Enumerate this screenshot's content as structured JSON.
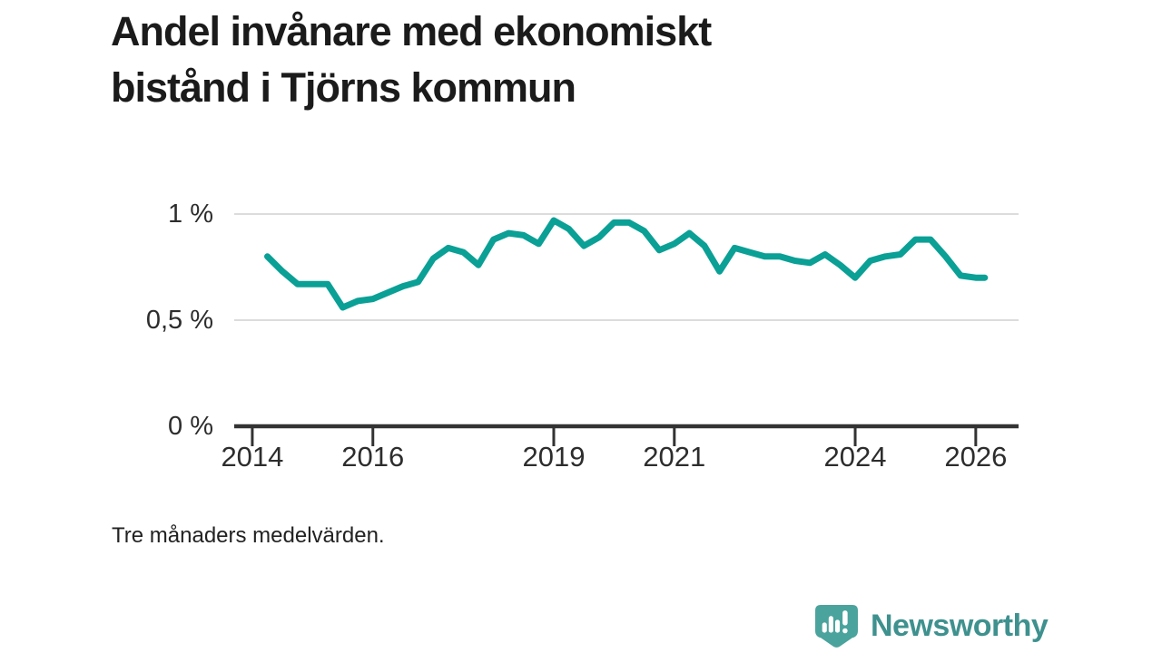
{
  "header": {
    "title_lines": [
      "Andel invånare med ekonomiskt",
      "bistånd i Tjörns kommun"
    ]
  },
  "footer": {
    "note": "Tre månaders medelvärden.",
    "brand": {
      "name": "Newsworthy",
      "badge_icon": "bar-chart-exclamation",
      "badge_color": "#4aa39c",
      "text_color": "#3e918e"
    }
  },
  "chart_data": {
    "type": "line",
    "title": "Andel invånare med ekonomiskt bistånd i Tjörns kommun",
    "subtitle": "Tre månaders medelvärden.",
    "x": [
      2014.25,
      2014.5,
      2014.75,
      2015.0,
      2015.25,
      2015.5,
      2015.75,
      2016.0,
      2016.25,
      2016.5,
      2016.75,
      2017.0,
      2017.25,
      2017.5,
      2017.75,
      2018.0,
      2018.25,
      2018.5,
      2018.75,
      2019.0,
      2019.25,
      2019.5,
      2019.75,
      2020.0,
      2020.25,
      2020.5,
      2020.75,
      2021.0,
      2021.25,
      2021.5,
      2021.75,
      2022.0,
      2022.25,
      2022.5,
      2022.75,
      2023.0,
      2023.25,
      2023.5,
      2023.75,
      2024.0,
      2024.25,
      2024.5,
      2024.75,
      2025.0,
      2025.25,
      2025.5,
      2025.75,
      2026.0,
      2026.15
    ],
    "values": [
      0.8,
      0.73,
      0.67,
      0.67,
      0.67,
      0.56,
      0.59,
      0.6,
      0.63,
      0.66,
      0.68,
      0.79,
      0.84,
      0.82,
      0.76,
      0.88,
      0.91,
      0.9,
      0.86,
      0.97,
      0.93,
      0.85,
      0.89,
      0.96,
      0.96,
      0.92,
      0.83,
      0.86,
      0.91,
      0.85,
      0.73,
      0.84,
      0.82,
      0.8,
      0.8,
      0.78,
      0.77,
      0.81,
      0.76,
      0.7,
      0.78,
      0.8,
      0.81,
      0.88,
      0.88,
      0.8,
      0.71,
      0.7,
      0.7
    ],
    "x_ticks": [
      2014,
      2016,
      2019,
      2021,
      2024,
      2026
    ],
    "x_tick_labels": [
      "2014",
      "2016",
      "2019",
      "2021",
      "2024",
      "2026"
    ],
    "y_ticks": [
      0,
      0.5,
      1
    ],
    "y_tick_labels": [
      "0 %",
      "0,5 %",
      "1 %"
    ],
    "xlim": [
      2013.7,
      2026.71
    ],
    "ylim": [
      0,
      1.15
    ],
    "unit": "%",
    "grid": "horizontal",
    "legend": "none",
    "line_color": "#0aa096",
    "gridline_color": "#dcdcdc",
    "axis_color": "#333333"
  }
}
